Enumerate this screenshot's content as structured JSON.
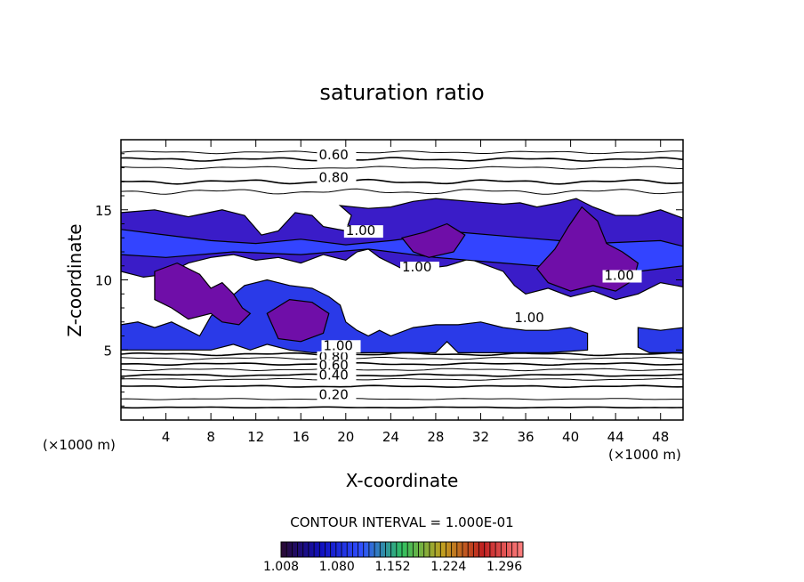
{
  "chart_data": {
    "type": "contour",
    "title": "saturation ratio",
    "xlabel": "X-coordinate",
    "ylabel": "Z-coordinate",
    "x_unit": "(×1000 m)",
    "y_unit": "(×1000 m)",
    "xlim": [
      0,
      50
    ],
    "ylim": [
      0,
      20
    ],
    "x_ticks": [
      4,
      8,
      12,
      16,
      20,
      24,
      28,
      32,
      36,
      40,
      44,
      48
    ],
    "y_ticks": [
      5,
      10,
      15
    ],
    "contour_interval_text": "CONTOUR INTERVAL = 1.000E-01",
    "contour_interval": 0.1,
    "contour_labels": [
      {
        "text": "0.60",
        "x": 17.6,
        "z": 18.6
      },
      {
        "text": "0.80",
        "x": 17.6,
        "z": 17.0
      },
      {
        "text": "0.80",
        "x": 17.6,
        "z": 4.2
      },
      {
        "text": "0.60",
        "x": 17.6,
        "z": 3.6
      },
      {
        "text": "0.40",
        "x": 17.6,
        "z": 2.9
      },
      {
        "text": "0.20",
        "x": 17.6,
        "z": 1.5
      },
      {
        "text": "1.00",
        "x": 25.0,
        "z": 10.6
      },
      {
        "text": "1.00",
        "x": 35.0,
        "z": 7.0
      },
      {
        "text": "1.00",
        "x": 43.0,
        "z": 10.0
      },
      {
        "text": "1.00",
        "x": 20.0,
        "z": 13.2
      },
      {
        "text": "1.00",
        "x": 18.0,
        "z": 5.0
      }
    ],
    "colorbar": {
      "ticks": [
        "1.008",
        "1.080",
        "1.152",
        "1.224",
        "1.296"
      ],
      "min": 1.008,
      "max": 1.32,
      "colors": [
        "#2a0a30",
        "#1010c0",
        "#3050ff",
        "#30c060",
        "#c0a020",
        "#c02020",
        "#ff8080"
      ]
    },
    "shading": {
      "palette": [
        "#6f0ea8",
        "#3a1cc8",
        "#2a3ae8",
        "#3344ff"
      ],
      "regions_note": "values between 1.008 and ~1.08 shaded purple/blue in band z≈5–16"
    }
  }
}
